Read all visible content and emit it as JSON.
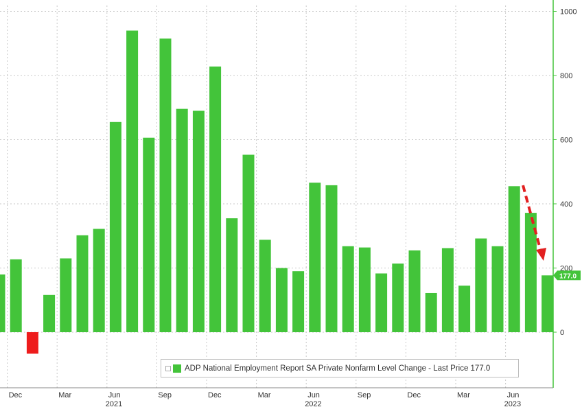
{
  "chart_data": {
    "type": "bar",
    "title": "",
    "xlabel": "",
    "ylabel": "",
    "ylim": [
      -150,
      1000
    ],
    "y_ticks": [
      0,
      200,
      400,
      600,
      800,
      1000
    ],
    "grid": true,
    "legend_position": "bottom-center",
    "y_axis_side": "right",
    "series": [
      {
        "name": "ADP National Employment Report SA Private Nonfarm Level Change - Last Price 177.0",
        "values": [
          180,
          227,
          -67,
          116,
          230,
          302,
          322,
          655,
          940,
          606,
          915,
          696,
          690,
          828,
          355,
          553,
          288,
          200,
          190,
          466,
          458,
          268,
          264,
          183,
          214,
          255,
          122,
          262,
          145,
          292,
          268,
          455,
          372,
          177
        ]
      }
    ],
    "x_month_labels": [
      {
        "index": 0,
        "label": "Dec"
      },
      {
        "index": 3,
        "label": "Mar"
      },
      {
        "index": 6,
        "label": "Jun"
      },
      {
        "index": 9,
        "label": "Sep"
      },
      {
        "index": 12,
        "label": "Dec"
      },
      {
        "index": 15,
        "label": "Mar"
      },
      {
        "index": 18,
        "label": "Jun"
      },
      {
        "index": 21,
        "label": "Sep"
      },
      {
        "index": 24,
        "label": "Dec"
      },
      {
        "index": 27,
        "label": "Mar"
      },
      {
        "index": 30,
        "label": "Jun"
      }
    ],
    "x_year_labels": [
      {
        "index": 6,
        "label": "2021"
      },
      {
        "index": 18,
        "label": "2022"
      },
      {
        "index": 30,
        "label": "2023"
      }
    ],
    "last_price_label": "177.0",
    "colors": {
      "positive": "#43c43a",
      "negative": "#ee1c1c",
      "axis_line": "#43c43a",
      "grid": "#c8c8c8",
      "arrow": "#e22020",
      "last_price_bg": "#43c43a"
    },
    "annotations": [
      {
        "type": "dashed-arrow",
        "meaning": "downward trend",
        "color": "#e22020"
      }
    ],
    "legend": {
      "text": "ADP National Employment Report SA Private Nonfarm Level Change - Last Price 177.0",
      "swatch_color": "#43c43a"
    }
  }
}
